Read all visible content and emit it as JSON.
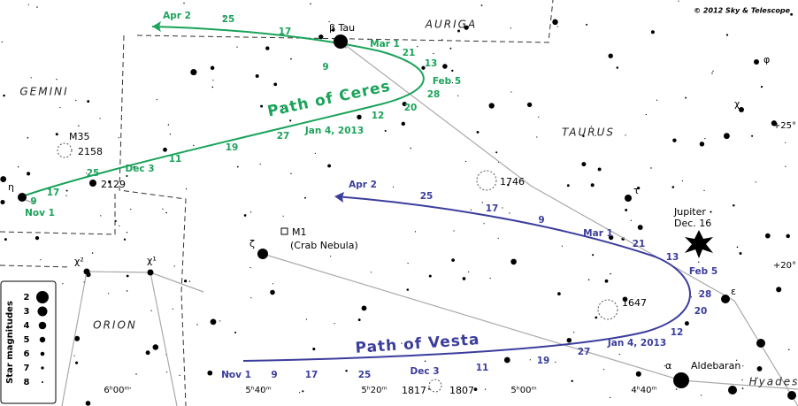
{
  "credit": "© 2012 Sky & Telescope",
  "constellations": [
    "AURIGA",
    "GEMINI",
    "TAURUS",
    "ORION",
    "Hyades"
  ],
  "objects": [
    "β Tau",
    "η",
    "M35",
    "2158",
    "2129",
    "χ²",
    "χ¹",
    "ζ",
    "M1",
    "(Crab Nebula)",
    "1746",
    "τ",
    "Jupiter",
    "Dec. 16",
    "ε",
    "1647",
    "α",
    "Aldebaran",
    "1817",
    "1807",
    "φ",
    "χ"
  ],
  "declination_labels": [
    "+25°",
    "+20°"
  ],
  "ra_labels": [
    "6ʰ00ᵐ",
    "5ʰ40ᵐ",
    "5ʰ20ᵐ",
    "5ʰ00ᵐ",
    "4ʰ40ᵐ"
  ],
  "ceres": {
    "title": "Path of Ceres",
    "dates": [
      "Nov 1",
      "9",
      "17",
      "25",
      "Dec 3",
      "11",
      "19",
      "27",
      "Jan 4, 2013",
      "12",
      "20",
      "28",
      "Feb 5",
      "13",
      "21",
      "Mar 1",
      "9",
      "17",
      "25",
      "Apr 2"
    ]
  },
  "vesta": {
    "title": "Path of Vesta",
    "dates": [
      "Nov 1",
      "9",
      "17",
      "25",
      "Dec 3",
      "11",
      "19",
      "27",
      "Jan 4, 2013",
      "12",
      "20",
      "28",
      "Feb 5",
      "13",
      "21",
      "Mar 1",
      "9",
      "17",
      "25",
      "Apr 2"
    ]
  },
  "legend": {
    "title": "Star magnitudes",
    "magnitudes": [
      2,
      3,
      4,
      5,
      6,
      7,
      8
    ]
  }
}
